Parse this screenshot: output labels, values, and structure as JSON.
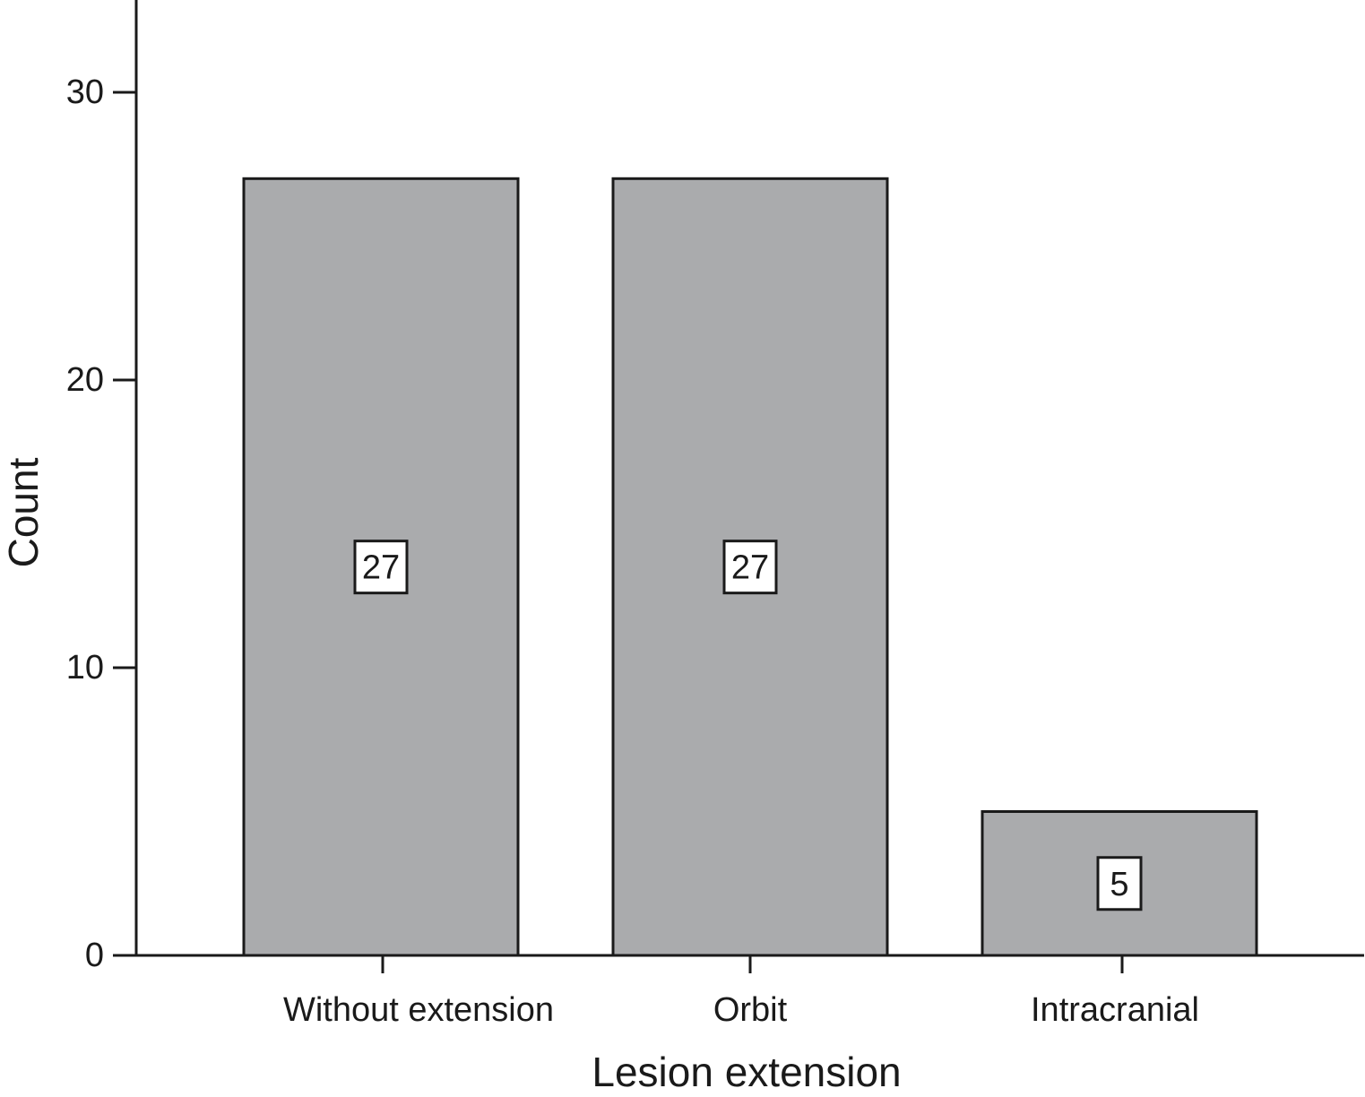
{
  "chart_data": {
    "type": "bar",
    "categories": [
      "Without extension",
      "Orbit",
      "Intracranial"
    ],
    "values": [
      27,
      27,
      5
    ],
    "data_labels": [
      "27",
      "27",
      "5"
    ],
    "title": "",
    "xlabel": "Lesion extension",
    "ylabel": "Count",
    "ylim": [
      0,
      33
    ],
    "yticks": [
      0,
      10,
      20,
      30
    ],
    "ytick_labels": [
      "0",
      "10",
      "20",
      "30"
    ],
    "grid": false,
    "legend": "none",
    "colors": {
      "bar_fill": "#aaabad",
      "outline": "#1a1a1a",
      "label_box_fill": "#ffffff",
      "background": "#ffffff"
    }
  }
}
